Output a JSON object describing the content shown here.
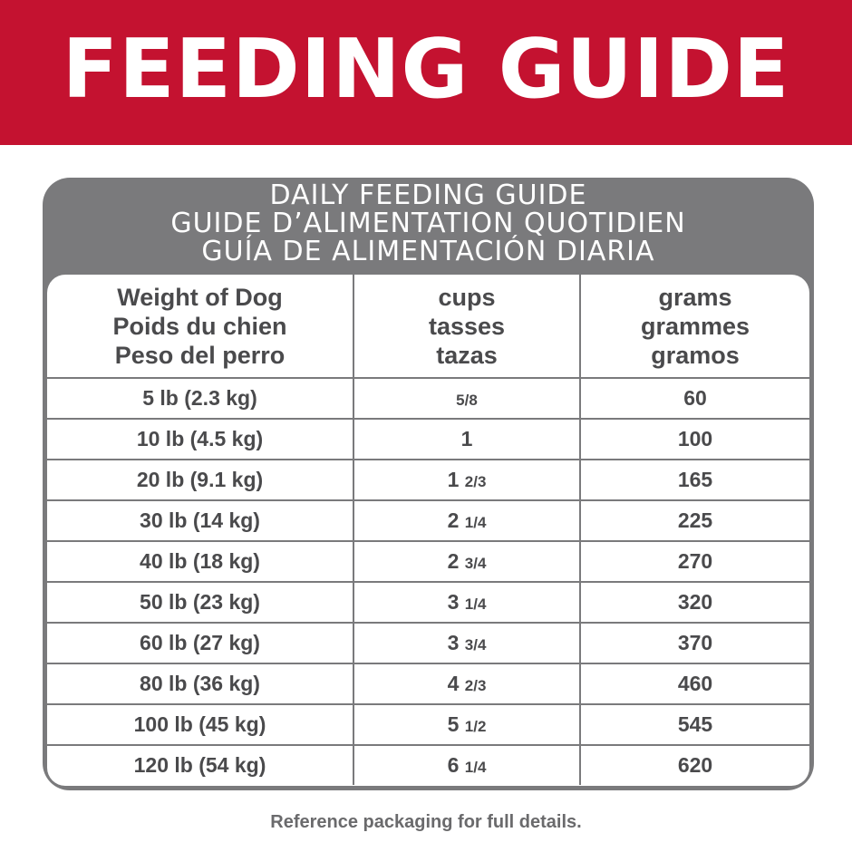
{
  "banner": {
    "title": "FEEDING GUIDE",
    "color": "#c41230"
  },
  "guide": {
    "header_en": "DAILY FEEDING GUIDE",
    "header_fr": "GUIDE D’ALIMENTATION QUOTIDIEN",
    "header_es": "GUÍA DE ALIMENTACIÓN DIARIA",
    "frame_color": "#7a7a7c",
    "columns": [
      {
        "en": "Weight of Dog",
        "fr": "Poids du chien",
        "es": "Peso del perro"
      },
      {
        "en": "cups",
        "fr": "tasses",
        "es": "tazas"
      },
      {
        "en": "grams",
        "fr": "grammes",
        "es": "gramos"
      }
    ],
    "rows": [
      {
        "weight": "5 lb (2.3 kg)",
        "cups_whole": "",
        "cups_frac": "5/8",
        "grams": "60"
      },
      {
        "weight": "10 lb (4.5 kg)",
        "cups_whole": "1",
        "cups_frac": "",
        "grams": "100"
      },
      {
        "weight": "20 lb (9.1 kg)",
        "cups_whole": "1",
        "cups_frac": "2/3",
        "grams": "165"
      },
      {
        "weight": "30 lb (14 kg)",
        "cups_whole": "2",
        "cups_frac": "1/4",
        "grams": "225"
      },
      {
        "weight": "40 lb (18 kg)",
        "cups_whole": "2",
        "cups_frac": "3/4",
        "grams": "270"
      },
      {
        "weight": "50 lb (23 kg)",
        "cups_whole": "3",
        "cups_frac": "1/4",
        "grams": "320"
      },
      {
        "weight": "60 lb (27 kg)",
        "cups_whole": "3",
        "cups_frac": "3/4",
        "grams": "370"
      },
      {
        "weight": "80 lb (36 kg)",
        "cups_whole": "4",
        "cups_frac": "2/3",
        "grams": "460"
      },
      {
        "weight": "100 lb (45 kg)",
        "cups_whole": "5",
        "cups_frac": "1/2",
        "grams": "545"
      },
      {
        "weight": "120 lb (54 kg)",
        "cups_whole": "6",
        "cups_frac": "1/4",
        "grams": "620"
      }
    ]
  },
  "footer": {
    "note": "Reference packaging for full details."
  }
}
